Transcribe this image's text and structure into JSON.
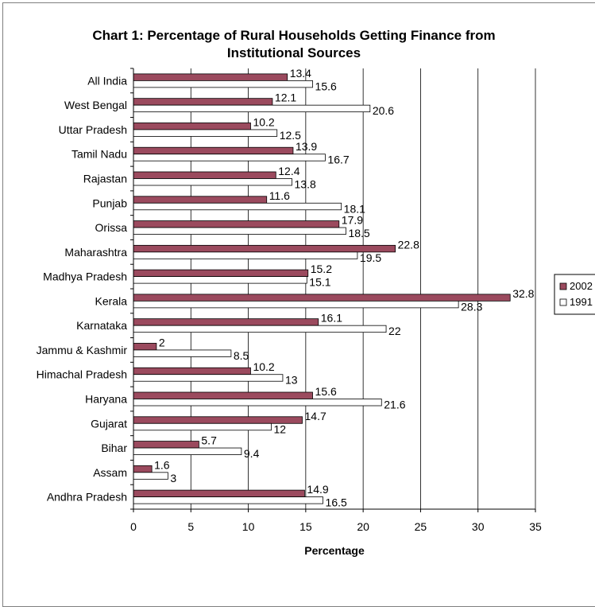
{
  "chart_data": {
    "type": "bar",
    "orientation": "horizontal",
    "title": "Chart 1: Percentage of Rural Households Getting Finance from Institutional Sources",
    "title_lines": [
      "Chart 1: Percentage of Rural Households Getting Finance from",
      "Institutional Sources"
    ],
    "xlabel": "Percentage",
    "ylabel": "",
    "xlim": [
      0,
      35
    ],
    "xticks": [
      0,
      5,
      10,
      15,
      20,
      25,
      30,
      35
    ],
    "grid": true,
    "legend_position": "right",
    "categories": [
      "All India",
      "West Bengal",
      "Uttar Pradesh",
      "Tamil Nadu",
      "Rajastan",
      "Punjab",
      "Orissa",
      "Maharashtra",
      "Madhya Pradesh",
      "Kerala",
      "Karnataka",
      "Jammu & Kashmir",
      "Himachal Pradesh",
      "Haryana",
      "Gujarat",
      "Bihar",
      "Assam",
      "Andhra Pradesh"
    ],
    "series": [
      {
        "name": "2002",
        "color": "#9b4a5e",
        "values": [
          13.4,
          12.1,
          10.2,
          13.9,
          12.4,
          11.6,
          17.9,
          22.8,
          15.2,
          32.8,
          16.1,
          2,
          10.2,
          15.6,
          14.7,
          5.7,
          1.6,
          14.9
        ]
      },
      {
        "name": "1991",
        "color": "#ffffff",
        "values": [
          15.6,
          20.6,
          12.5,
          16.7,
          13.8,
          18.1,
          18.5,
          19.5,
          15.1,
          28.3,
          22,
          8.5,
          13,
          21.6,
          12,
          9.4,
          3,
          16.5
        ]
      }
    ]
  }
}
